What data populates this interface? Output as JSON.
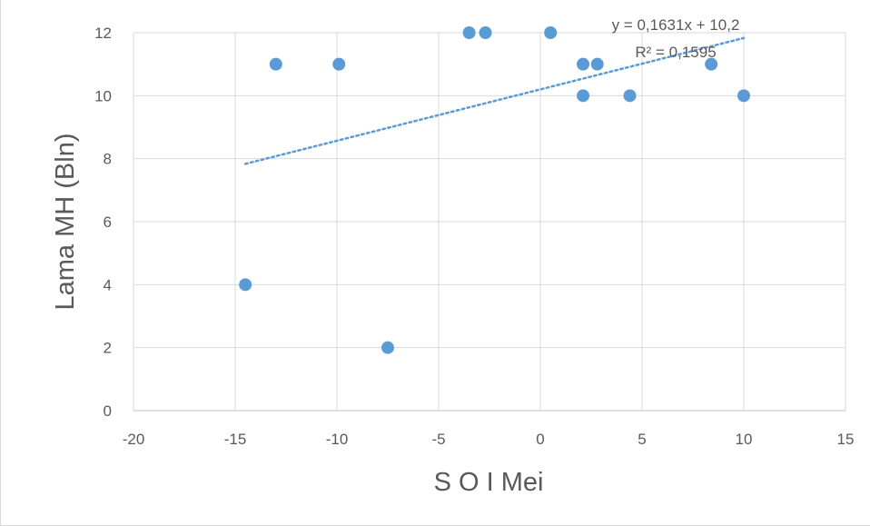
{
  "chart_data": {
    "type": "scatter",
    "xlabel": "S O I Mei",
    "ylabel": "Lama MH (Bln)",
    "xlim": [
      -20,
      15
    ],
    "ylim": [
      0,
      12
    ],
    "x_ticks": [
      -20,
      -15,
      -10,
      -5,
      0,
      5,
      10,
      15
    ],
    "y_ticks": [
      0,
      2,
      4,
      6,
      8,
      10,
      12
    ],
    "grid": true,
    "points": [
      {
        "x": -14.5,
        "y": 4
      },
      {
        "x": -13.0,
        "y": 11
      },
      {
        "x": -9.9,
        "y": 11
      },
      {
        "x": -7.5,
        "y": 2
      },
      {
        "x": -3.5,
        "y": 12
      },
      {
        "x": -2.7,
        "y": 12
      },
      {
        "x": 0.5,
        "y": 12
      },
      {
        "x": 2.1,
        "y": 11
      },
      {
        "x": 2.1,
        "y": 10
      },
      {
        "x": 2.8,
        "y": 11
      },
      {
        "x": 4.4,
        "y": 10
      },
      {
        "x": 8.4,
        "y": 11
      },
      {
        "x": 10.0,
        "y": 10
      }
    ],
    "trendline": {
      "type": "linear",
      "slope": 0.1631,
      "intercept": 10.2,
      "x_range": [
        -14.5,
        10.0
      ],
      "equation_label": "y = 0,1631x + 10,2",
      "r2_label": "R² = 0,1595"
    },
    "marker_color": "#5b9bd5",
    "trend_color": "#5b9bd5"
  }
}
